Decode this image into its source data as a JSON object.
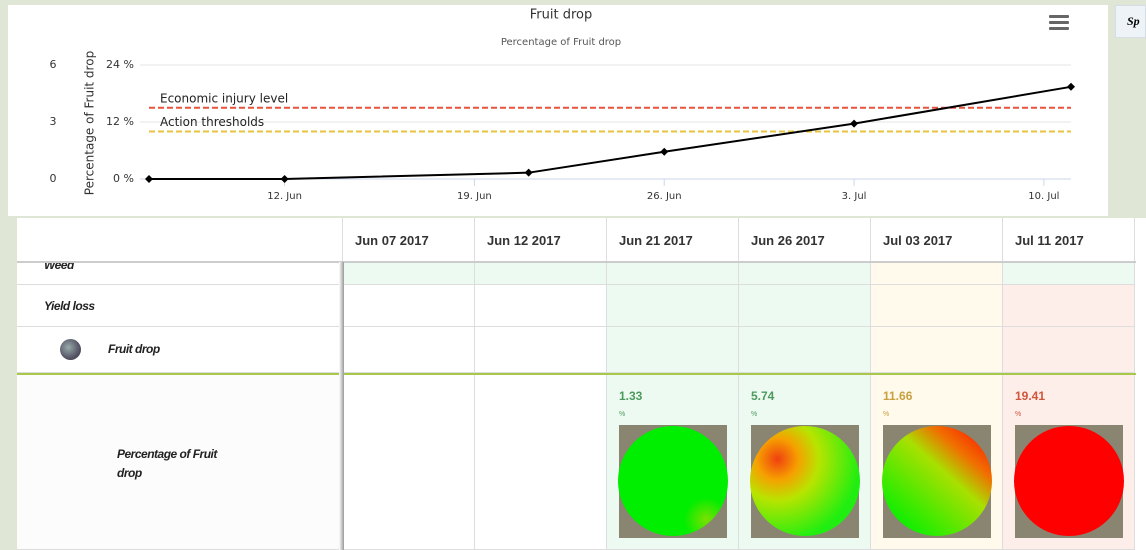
{
  "chart_data": {
    "type": "line",
    "title": "Fruit drop",
    "subtitle": "Percentage of Fruit drop",
    "ylabel": "Percentage of Fruit drop",
    "x": [
      "2017-06-07",
      "2017-06-12",
      "2017-06-21",
      "2017-06-26",
      "2017-07-03",
      "2017-07-11"
    ],
    "values": [
      0,
      0,
      1.33,
      5.74,
      11.66,
      19.41
    ],
    "color": "#000000",
    "xlim": [
      "2017-06-07",
      "2017-07-11"
    ],
    "xticks": [
      {
        "value": "2017-06-12",
        "label": "12. Jun"
      },
      {
        "value": "2017-06-19",
        "label": "19. Jun"
      },
      {
        "value": "2017-06-26",
        "label": "26. Jun"
      },
      {
        "value": "2017-07-03",
        "label": "3. Jul"
      },
      {
        "value": "2017-07-10",
        "label": "10. Jul"
      }
    ],
    "ylim": [
      0,
      24
    ],
    "yticks": [
      {
        "value": 0,
        "label": "0 %"
      },
      {
        "value": 12,
        "label": "12 %"
      },
      {
        "value": 24,
        "label": "24 %"
      }
    ],
    "y2lim": [
      0,
      6
    ],
    "y2ticks": [
      0,
      3,
      6
    ],
    "thresholds": [
      {
        "label": "Economic injury level",
        "value": 15,
        "color": "#e8533a"
      },
      {
        "label": "Action thresholds",
        "value": 10,
        "color": "#e8c340"
      }
    ],
    "grid": true
  },
  "side_tab": "Sp",
  "table": {
    "columns": [
      "Jun 07 2017",
      "Jun 12 2017",
      "Jun 21 2017",
      "Jun 26 2017",
      "Jul 03 2017",
      "Jul 11 2017"
    ],
    "rows": [
      {
        "label": "Weed",
        "fills": [
          "#edfaf2",
          "#edfaf2",
          "#edfaf2",
          "#edfaf2",
          "#fffaeb",
          "#edfaf2"
        ]
      },
      {
        "label": "Yield loss",
        "fills": [
          "#ffffff",
          "#ffffff",
          "#edfaf2",
          "#edfaf2",
          "#fffaeb",
          "#fdeeea"
        ]
      },
      {
        "label": "Fruit drop",
        "fills": [
          "#ffffff",
          "#ffffff",
          "#edfaf2",
          "#edfaf2",
          "#fffaeb",
          "#fdeeea"
        ]
      },
      {
        "label": "Percentage of Fruit drop",
        "fills": [
          "#ffffff",
          "#ffffff",
          "#edfaf2",
          "#edfaf2",
          "#fffaeb",
          "#fdeeea"
        ],
        "cells": [
          null,
          null,
          1.33,
          5.74,
          11.66,
          19.41
        ],
        "unit": "%",
        "value_colors": [
          null,
          null,
          "#4c9a5c",
          "#4c9a5c",
          "#c8a040",
          "#d0553a"
        ]
      }
    ]
  }
}
